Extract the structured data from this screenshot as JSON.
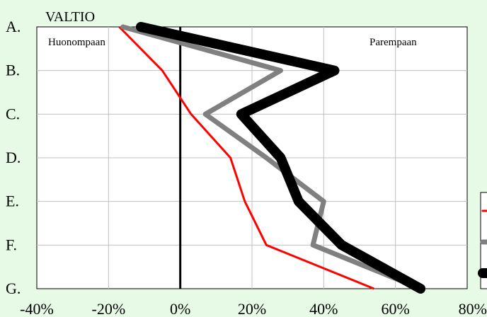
{
  "chart_data": {
    "type": "line",
    "title": "VALTIO",
    "orientation": "horizontal",
    "categories": [
      "A.",
      "B.",
      "C.",
      "D.",
      "E.",
      "F.",
      "G."
    ],
    "x_ticks": [
      -40,
      -20,
      0,
      20,
      40,
      60,
      80
    ],
    "x_tick_labels": [
      "-40%",
      "-20%",
      "0%",
      "20%",
      "40%",
      "60%",
      "80%"
    ],
    "xlim": [
      -40,
      80
    ],
    "grid": true,
    "annotations": {
      "left": "Huonompaan",
      "right": "Parempaan"
    },
    "legend_placement": "right (partially cut off)",
    "series": [
      {
        "color": "#ff0000",
        "width": "thin",
        "values": [
          -17,
          -5,
          3,
          14,
          18,
          24,
          54
        ]
      },
      {
        "color": "#808080",
        "width": "medium",
        "values": [
          -16,
          28,
          7,
          24,
          40,
          37,
          67
        ]
      },
      {
        "color": "#000000",
        "width": "thick",
        "values": [
          -11,
          43,
          17,
          28,
          33,
          45,
          67
        ]
      }
    ]
  }
}
